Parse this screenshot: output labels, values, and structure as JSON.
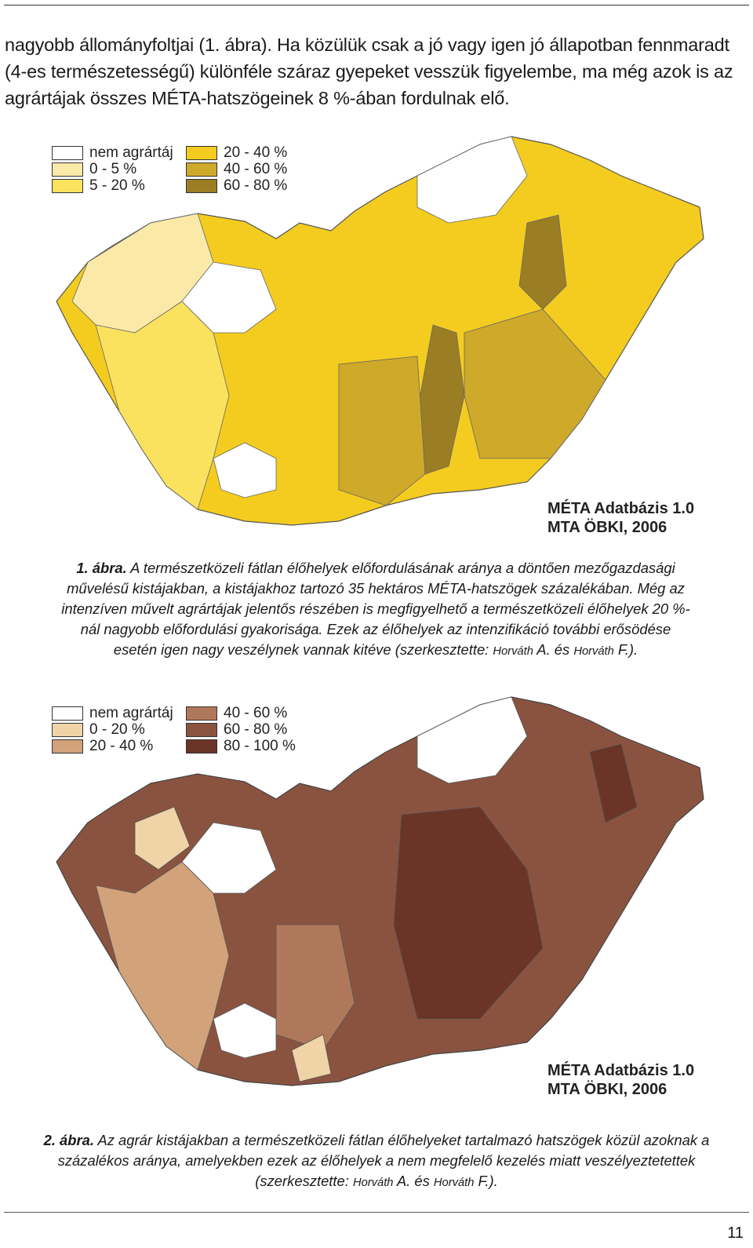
{
  "intro_text": "nagyobb állományfoltjai (1. ábra). Ha közülük csak a jó vagy igen jó állapotban fennmaradt (4-es természetességű) különféle száraz gyepeket vesszük figyelembe, ma még azok is az agrártájak összes MÉTA-hatszögeinek 8 %-ában fordulnak elő.",
  "figure1": {
    "legend_left": [
      {
        "label": "nem agrártáj",
        "color": "#ffffff"
      },
      {
        "label": "0 - 5 %",
        "color": "#fbe9a8"
      },
      {
        "label": "5 - 20 %",
        "color": "#fbe25e"
      }
    ],
    "legend_right": [
      {
        "label": "20 - 40 %",
        "color": "#f3cc1f"
      },
      {
        "label": "40 - 60 %",
        "color": "#cfa929"
      },
      {
        "label": "60 - 80 %",
        "color": "#9b7d24"
      }
    ],
    "source_line1": "MÉTA Adatbázis 1.0",
    "source_line2": "MTA ÖBKI, 2006",
    "caption_label": "1. ábra.",
    "caption_text": "A természetközeli fátlan élőhelyek előfordulásának aránya a döntően mezőgazdasági művelésű kistájakban, a kistájakhoz tartozó 35 hektáros MÉTA-hatszögek százalékában. Még az intenzíven művelt agrártájak jelentős részében is megfigyelhető a természetközeli élőhelyek 20 %-nál nagyobb előfordulási gyakorisága. Ezek az élőhelyek az intenzifikáció további erősödése esetén igen nagy veszélynek vannak kitéve (szerkesztette: ",
    "author1": "Horváth",
    "author1_initial": " A. és ",
    "author2": "Horváth",
    "author2_initial": " F.)."
  },
  "figure2": {
    "legend_left": [
      {
        "label": "nem agrártáj",
        "color": "#ffffff"
      },
      {
        "label": "0 - 20 %",
        "color": "#f0d4a8"
      },
      {
        "label": "20 - 40 %",
        "color": "#d2a27a"
      }
    ],
    "legend_right": [
      {
        "label": "40 - 60 %",
        "color": "#b0785a"
      },
      {
        "label": "60 - 80 %",
        "color": "#8a5340"
      },
      {
        "label": "80 - 100 %",
        "color": "#6a3426"
      }
    ],
    "source_line1": "MÉTA Adatbázis 1.0",
    "source_line2": "MTA ÖBKI, 2006",
    "caption_label": "2. ábra.",
    "caption_text": "Az agrár kistájakban a természetközeli fátlan élőhelyeket tartalmazó hatszögek közül azoknak a százalékos aránya, amelyekben ezek az élőhelyek a nem megfelelő kezelés miatt veszélyeztetettek (szerkesztette: ",
    "author1": "Horváth",
    "author1_initial": " A. és ",
    "author2": "Horváth",
    "author2_initial": " F.)."
  },
  "page_number": "11"
}
